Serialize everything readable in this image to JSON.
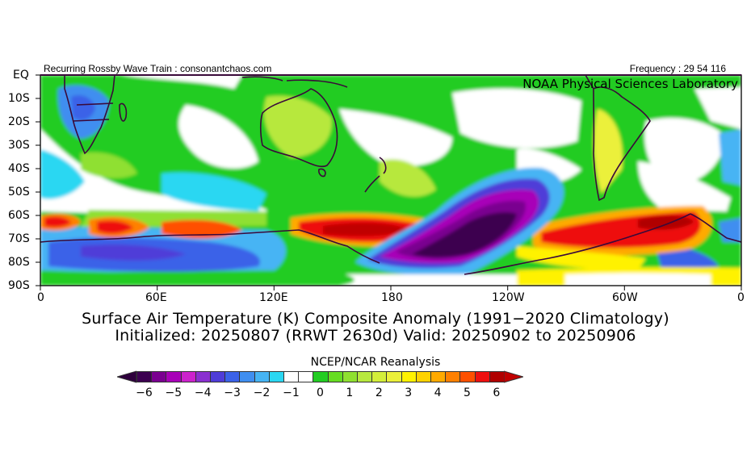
{
  "header": {
    "left_caption": "Recurring Rossby Wave Train : consonantchaos.com",
    "right_caption": "Frequency : 29 54 116",
    "lab": "NOAA Physical Sciences Laboratory"
  },
  "axes": {
    "lat_labels": [
      "EQ",
      "10S",
      "20S",
      "30S",
      "40S",
      "50S",
      "60S",
      "70S",
      "80S",
      "90S"
    ],
    "lon_labels": [
      "0",
      "60E",
      "120E",
      "180",
      "120W",
      "60W",
      "0"
    ]
  },
  "titles": {
    "line1": "Surface Air Temperature (K) Composite Anomaly (1991−2020 Climatology)",
    "line2": "Initialized: 20250807 (RRWT 2630d) Valid: 20250902 to 20250906"
  },
  "colorbar": {
    "label": "NCEP/NCAR Reanalysis",
    "tick_labels": [
      "−6",
      "−5",
      "−4",
      "−3",
      "−2",
      "−1",
      "0",
      "1",
      "2",
      "3",
      "4",
      "5",
      "6"
    ],
    "colors": [
      "#3c0050",
      "#7a0090",
      "#a800b8",
      "#cc22cc",
      "#8a30d0",
      "#4f3cd8",
      "#3b62e8",
      "#3f8ef0",
      "#46b4f4",
      "#2ad7f2",
      "#ffffff",
      "#ffffff",
      "#22cc22",
      "#66dd22",
      "#8fe030",
      "#b7e83e",
      "#d3ee3a",
      "#ebf03a",
      "#fff200",
      "#ffd200",
      "#ffaa00",
      "#ff8000",
      "#ff5000",
      "#ee1010",
      "#b00000"
    ],
    "under_color": "#2e003c",
    "over_color": "#c00000"
  }
}
